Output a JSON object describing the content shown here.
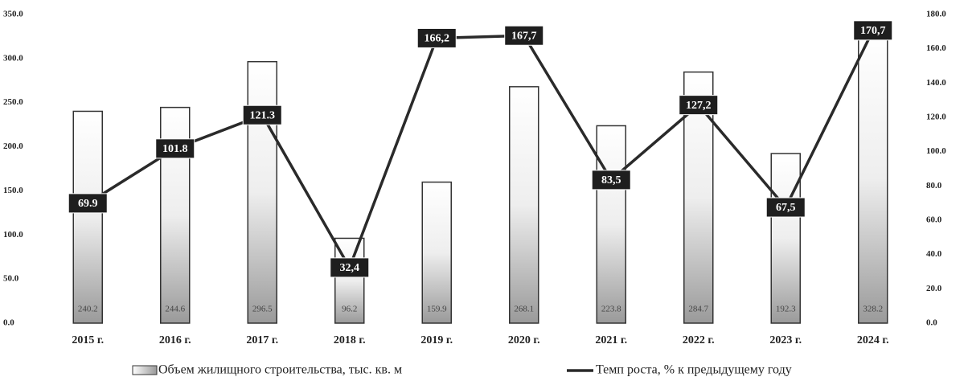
{
  "chart_data": {
    "type": "bar",
    "categories": [
      "2015 г.",
      "2016 г.",
      "2017 г.",
      "2018 г.",
      "2019 г.",
      "2020 г.",
      "2021 г.",
      "2022 г.",
      "2023 г.",
      "2024 г."
    ],
    "series": [
      {
        "name": "Объем жилищного строительства, тыс. кв. м",
        "type": "bar",
        "color": "#333333",
        "values": [
          240.2,
          244.6,
          296.5,
          96.2,
          159.9,
          268.1,
          223.8,
          284.7,
          192.3,
          328.2
        ]
      },
      {
        "name": "Темп роста, % к предыдущему году",
        "type": "line",
        "axis": "y2",
        "color": "#2a2a2a",
        "values": [
          69.9,
          101.8,
          121.3,
          32.4,
          166.2,
          167.7,
          83.5,
          127.2,
          67.5,
          170.7
        ],
        "value_labels": [
          "69.9",
          "101.8",
          "121.3",
          "32,4",
          "166,2",
          "167,7",
          "83,5",
          "127,2",
          "67,5",
          "170,7"
        ]
      }
    ],
    "ylim": [
      0,
      350
    ],
    "yticks": [
      {
        "value": 0,
        "label": "0.0"
      },
      {
        "value": 50,
        "label": "50.0"
      },
      {
        "value": 100,
        "label": "100.0"
      },
      {
        "value": 150,
        "label": "150.0"
      },
      {
        "value": 200,
        "label": "200.0"
      },
      {
        "value": 250,
        "label": "250.0"
      },
      {
        "value": 300,
        "label": "300.0"
      },
      {
        "value": 350,
        "label": "350.0"
      }
    ],
    "y2lim": [
      0,
      180
    ],
    "y2ticks": [
      {
        "value": 0,
        "label": "0.0"
      },
      {
        "value": 20,
        "label": "20.0"
      },
      {
        "value": 40,
        "label": "40.0"
      },
      {
        "value": 60,
        "label": "60.0"
      },
      {
        "value": 80,
        "label": "80.0"
      },
      {
        "value": 100,
        "label": "100.0"
      },
      {
        "value": 120,
        "label": "120.0"
      },
      {
        "value": 140,
        "label": "140.0"
      },
      {
        "value": 160,
        "label": "160.0"
      },
      {
        "value": 180,
        "label": "180.0"
      }
    ]
  }
}
